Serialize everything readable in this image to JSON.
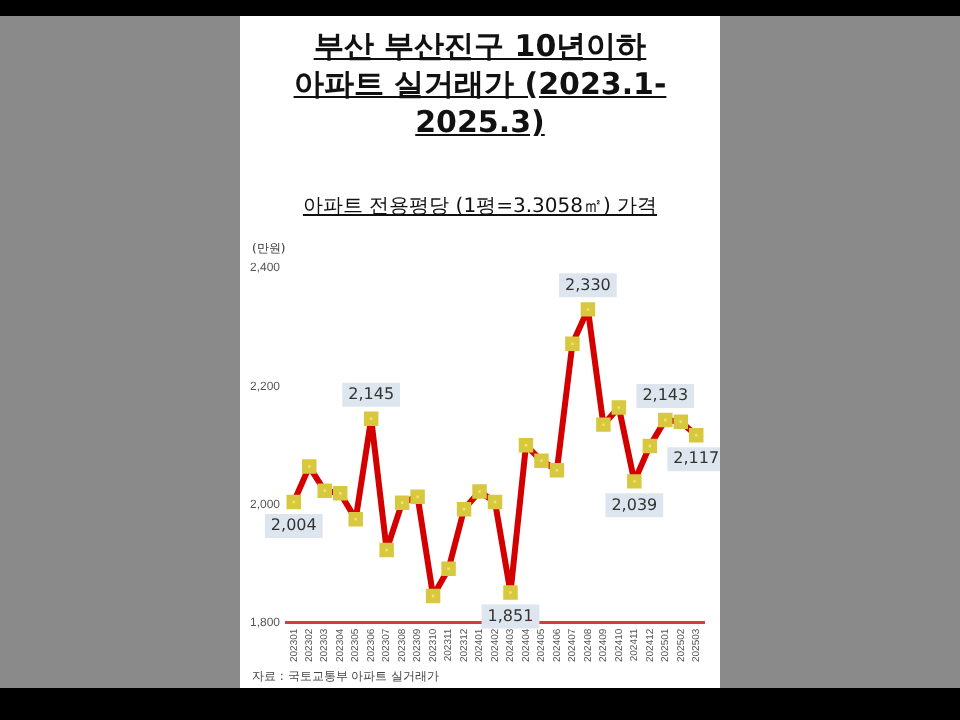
{
  "chart_data": {
    "type": "line",
    "title": "부산 부산진구 10년이하\n아파트 실거래가 (2023.1-2025.3)",
    "subtitle": "아파트 전용평당 (1평=3.3058㎡) 가격",
    "ylabel": "(만원)",
    "categories": [
      "202301",
      "202302",
      "202303",
      "202304",
      "202305",
      "202306",
      "202307",
      "202308",
      "202309",
      "202310",
      "202311",
      "202312",
      "202401",
      "202402",
      "202403",
      "202404",
      "202405",
      "202406",
      "202407",
      "202408",
      "202409",
      "202410",
      "202411",
      "202412",
      "202501",
      "202502",
      "202503"
    ],
    "series": [
      {
        "color": "#d40000",
        "values": [
          2004,
          2064,
          2023,
          2019,
          1975,
          2145,
          1923,
          2003,
          2013,
          1845,
          1891,
          1992,
          2022,
          2004,
          1851,
          2100,
          2074,
          2058,
          2272,
          2330,
          2135,
          2164,
          2039,
          2099,
          2143,
          2140,
          2117
        ],
        "value_labels": [
          "2,004",
          null,
          null,
          null,
          null,
          "2,145",
          null,
          null,
          null,
          null,
          null,
          null,
          null,
          null,
          "1,851",
          null,
          null,
          null,
          null,
          "2,330",
          null,
          null,
          "2,039",
          null,
          "2,143",
          null,
          "2,117"
        ]
      }
    ],
    "ylim": [
      1800,
      2400
    ],
    "yticks": [
      {
        "value": 1800,
        "label": "1,800"
      },
      {
        "value": 2000,
        "label": "2,000"
      },
      {
        "value": 2200,
        "label": "2,200"
      },
      {
        "value": 2400,
        "label": "2,400"
      }
    ],
    "marker": "square",
    "grid": false,
    "legend": false,
    "annotations": [
      "자료 : 국토교통부 아파트 실거래가"
    ]
  }
}
